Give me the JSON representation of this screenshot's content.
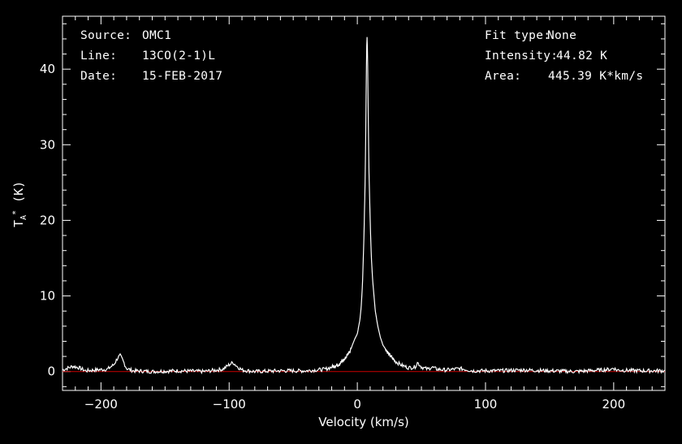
{
  "header_left": {
    "source_label": "Source:",
    "source_value": "OMC1",
    "line_label": "Line:",
    "line_value": "13CO(2-1)L",
    "date_label": "Date:",
    "date_value": "15-FEB-2017"
  },
  "header_right": {
    "fit_label": "Fit type:",
    "fit_value": "None",
    "intensity_label": "Intensity:",
    "intensity_value": "44.82 K",
    "area_label": "Area:",
    "area_value": "445.39 K*km/s"
  },
  "colors": {
    "background": "#000000",
    "axes": "#ffffff",
    "spectrum": "#ffffff",
    "baseline": "#cc0000"
  },
  "chart_data": {
    "type": "line",
    "title": "",
    "xlabel": "Velocity (km/s)",
    "ylabel_main": "T",
    "ylabel_sup": "*",
    "ylabel_sub": "A",
    "ylabel_unit": " (K)",
    "xlim": [
      -230,
      240
    ],
    "ylim": [
      -2.5,
      47
    ],
    "xticks": [
      -200,
      -100,
      0,
      100,
      200
    ],
    "xtick_labels": [
      "−200",
      "−100",
      "0",
      "100",
      "200"
    ],
    "yticks": [
      0,
      10,
      20,
      30,
      40
    ],
    "ytick_labels": [
      "0",
      "10",
      "20",
      "30",
      "40"
    ],
    "baseline": 0,
    "series": [
      {
        "x": [
          -230,
          -222,
          -217,
          -212,
          -205,
          -195,
          -190,
          -187,
          -185,
          -183,
          -180,
          -175,
          -160,
          -140,
          -120,
          -105,
          -100,
          -97,
          -94,
          -90,
          -80,
          -60,
          -40,
          -25,
          -15,
          -10,
          -5,
          -2,
          0,
          2,
          3,
          4,
          5,
          6,
          6.5,
          7,
          7.5,
          8,
          8.5,
          9,
          10,
          11,
          12,
          14,
          16,
          18,
          20,
          25,
          30,
          35,
          40,
          45,
          47,
          50,
          55,
          58,
          62,
          70,
          80,
          90,
          110,
          130,
          150,
          170,
          190,
          198,
          200,
          202,
          220,
          240
        ],
        "y": [
          0.2,
          0.7,
          0.5,
          0.1,
          0.2,
          0.3,
          0.9,
          1.8,
          2.1,
          1.5,
          0.4,
          0.1,
          0.0,
          0.1,
          0.0,
          0.3,
          0.9,
          1.2,
          0.7,
          0.2,
          0.0,
          0.1,
          0.1,
          0.3,
          0.9,
          1.6,
          3.0,
          4.3,
          5.0,
          6.8,
          8.5,
          11.5,
          17.0,
          24.0,
          30.0,
          39.0,
          44.82,
          42.0,
          34.0,
          27.0,
          20.0,
          15.0,
          12.0,
          8.0,
          6.0,
          4.5,
          3.5,
          2.2,
          1.3,
          0.8,
          0.5,
          0.6,
          1.2,
          0.6,
          0.3,
          0.6,
          0.3,
          0.2,
          0.4,
          0.1,
          0.1,
          0.2,
          0.1,
          0.0,
          0.2,
          0.3,
          0.5,
          0.2,
          0.1,
          0.1
        ]
      }
    ]
  }
}
